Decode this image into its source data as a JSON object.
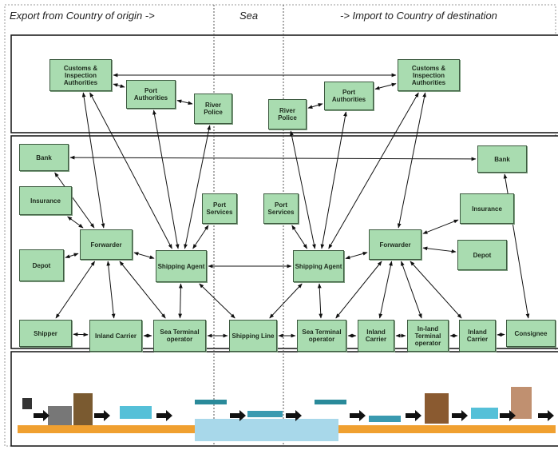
{
  "header": {
    "export": "Export from Country of origin ->",
    "sea": "Sea",
    "import": "-> Import to Country of destination"
  },
  "nodes": [
    {
      "label": "Customs & Inspection Authorities"
    },
    {
      "label": "Port Authorities"
    },
    {
      "label": "River Police"
    },
    {
      "label": "River Police"
    },
    {
      "label": "Port Authorities"
    },
    {
      "label": "Customs & Inspection Authorities"
    },
    {
      "label": "Bank"
    },
    {
      "label": "Bank"
    },
    {
      "label": "Insurance"
    },
    {
      "label": "Insurance"
    },
    {
      "label": "Port Services"
    },
    {
      "label": "Port Services"
    },
    {
      "label": "Forwarder"
    },
    {
      "label": "Forwarder"
    },
    {
      "label": "Depot"
    },
    {
      "label": "Depot"
    },
    {
      "label": "Shipping Agent"
    },
    {
      "label": "Shipping Agent"
    },
    {
      "label": "Shipper"
    },
    {
      "label": "Inland Carrier"
    },
    {
      "label": "Sea Terminal operator"
    },
    {
      "label": "Shipping Line"
    },
    {
      "label": "Sea Terminal operator"
    },
    {
      "label": "Inland Carrier"
    },
    {
      "label": "In-land Terminal operator"
    },
    {
      "label": "Inland Carrier"
    },
    {
      "label": "Consignee"
    }
  ]
}
